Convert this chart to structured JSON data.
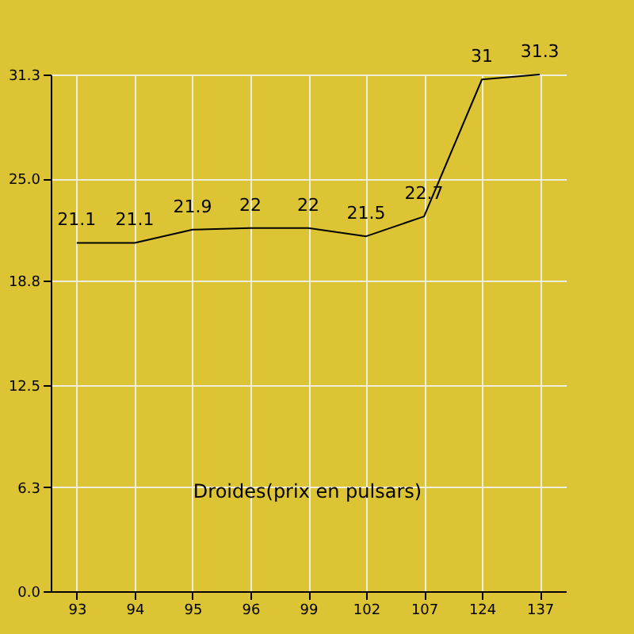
{
  "chart_data": {
    "type": "line",
    "categories": [
      "93",
      "94",
      "95",
      "96",
      "99",
      "102",
      "107",
      "124",
      "137"
    ],
    "series": [
      {
        "color": "#000000",
        "values": [
          21.1,
          21.1,
          21.9,
          22,
          22,
          21.5,
          22.7,
          31,
          31.3
        ]
      }
    ],
    "ylim": [
      0,
      31.3
    ],
    "yticks": [
      {
        "value": 0,
        "label": "0.0"
      },
      6.3,
      12.5,
      18.8,
      {
        "value": 25,
        "label": "25.0"
      },
      31.3
    ],
    "grid": true,
    "data_labels": true,
    "marker": "none",
    "line_style": "solid",
    "annotations": [
      "Droides(prix en pulsars)"
    ]
  }
}
